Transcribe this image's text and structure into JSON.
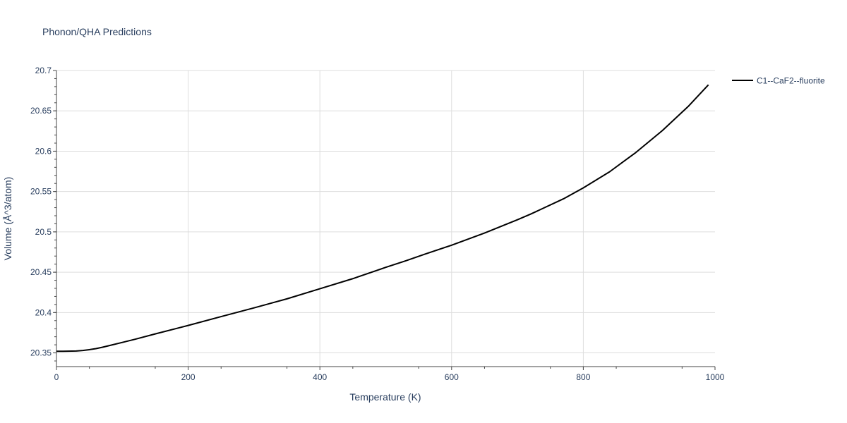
{
  "chart_data": {
    "type": "line",
    "title": "Phonon/QHA Predictions",
    "xlabel": "Temperature (K)",
    "ylabel": "Volume (Å^3/atom)",
    "xlim": [
      0,
      1000
    ],
    "ylim": [
      20.333,
      20.7
    ],
    "x_ticks": [
      0,
      200,
      400,
      600,
      800,
      1000
    ],
    "x_tick_labels": [
      "0",
      "200",
      "400",
      "600",
      "800",
      "1000"
    ],
    "y_ticks": [
      20.35,
      20.4,
      20.45,
      20.5,
      20.55,
      20.6,
      20.65,
      20.7
    ],
    "y_tick_labels": [
      "20.35",
      "20.4",
      "20.45",
      "20.5",
      "20.55",
      "20.6",
      "20.65",
      "20.7"
    ],
    "grid": true,
    "legend_position": "top-right",
    "series": [
      {
        "name": "C1--CaF2--fluorite",
        "color": "#000000",
        "x": [
          0,
          10,
          30,
          40,
          50,
          60,
          70,
          80,
          100,
          120,
          150,
          200,
          250,
          300,
          350,
          400,
          450,
          500,
          530,
          560,
          600,
          650,
          700,
          720,
          770,
          800,
          840,
          880,
          920,
          960,
          990
        ],
        "y": [
          20.352,
          20.352,
          20.3523,
          20.353,
          20.354,
          20.3553,
          20.357,
          20.359,
          20.363,
          20.367,
          20.3735,
          20.384,
          20.395,
          20.4058,
          20.417,
          20.4295,
          20.442,
          20.456,
          20.464,
          20.4725,
          20.4835,
          20.4985,
          20.515,
          20.522,
          20.541,
          20.5545,
          20.5745,
          20.5985,
          20.6255,
          20.656,
          20.6823
        ]
      }
    ]
  }
}
